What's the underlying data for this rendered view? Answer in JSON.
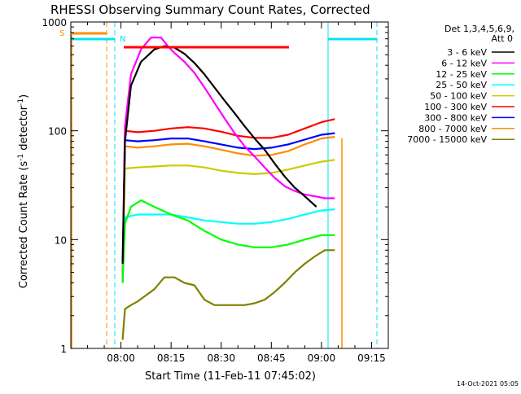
{
  "chart_data": {
    "type": "line",
    "title": "RHESSI Observing Summary Count Rates, Corrected",
    "xlabel": "Start Time (11-Feb-11 07:45:02)",
    "ylabel_main": "Corrected Count Rate (s",
    "ylabel_sup1": "-1",
    "ylabel_mid": " detector",
    "ylabel_sup2": "-1",
    "ylabel_end": ")",
    "y_scale": "log",
    "ylim": [
      1,
      1000
    ],
    "xlim_minutes": [
      0,
      95
    ],
    "x_ticks": [
      {
        "min": 15,
        "label": "08:00"
      },
      {
        "min": 30,
        "label": "08:15"
      },
      {
        "min": 45,
        "label": "08:30"
      },
      {
        "min": 60,
        "label": "08:45"
      },
      {
        "min": 75,
        "label": "09:00"
      },
      {
        "min": 90,
        "label": "09:15"
      }
    ],
    "y_ticks": [
      {
        "value": 1,
        "label": "1"
      },
      {
        "value": 10,
        "label": "10"
      },
      {
        "value": 100,
        "label": "100"
      },
      {
        "value": 1000,
        "label": "1000"
      }
    ],
    "legend_header": [
      "Det 1,3,4,5,6,9,",
      "Att 0"
    ],
    "legend_position": "right",
    "timestamp": "14-Oct-2021 05:05",
    "annotations": [
      {
        "text": "S",
        "color": "#ff8c00"
      },
      {
        "text": "N",
        "color": "#00e5ee"
      }
    ],
    "series": [
      {
        "name": "3 - 6 keV",
        "color": "#000000",
        "x": [
          15.5,
          16.2,
          18,
          21,
          25,
          28,
          31,
          34,
          37,
          40,
          43,
          46,
          49,
          52,
          55,
          58,
          61,
          64,
          67,
          70,
          72,
          73.5
        ],
        "values": [
          6,
          80,
          260,
          430,
          560,
          600,
          580,
          510,
          420,
          330,
          250,
          190,
          145,
          110,
          85,
          67,
          50,
          38,
          30,
          25,
          22,
          20
        ]
      },
      {
        "name": "6 - 12 keV",
        "color": "#ff00ff",
        "x": [
          15.5,
          16.2,
          18,
          21,
          24,
          27,
          29,
          31,
          34,
          37,
          40,
          43,
          46,
          49,
          52,
          55,
          58,
          61,
          64,
          67,
          70,
          73,
          76,
          79
        ],
        "values": [
          6,
          110,
          330,
          560,
          720,
          720,
          600,
          520,
          430,
          340,
          250,
          180,
          130,
          95,
          72,
          58,
          46,
          37,
          31,
          28,
          26,
          25,
          24,
          24
        ]
      },
      {
        "name": "12 - 25 keV",
        "color": "#00ff00",
        "x": [
          15.5,
          16.2,
          18,
          21,
          25,
          30,
          35,
          40,
          45,
          50,
          55,
          60,
          65,
          70,
          75,
          79
        ],
        "values": [
          4,
          14,
          20,
          23,
          20,
          17,
          15,
          12,
          10,
          9,
          8.5,
          8.5,
          9,
          10,
          11,
          11
        ]
      },
      {
        "name": "25 - 50 keV",
        "color": "#00ffff",
        "x": [
          15.5,
          16.2,
          20,
          25,
          30,
          35,
          40,
          45,
          50,
          55,
          60,
          65,
          70,
          75,
          79
        ],
        "values": [
          4,
          16,
          17,
          17,
          17,
          16,
          15,
          14.5,
          14,
          14,
          14.5,
          15.5,
          17,
          18.5,
          19
        ]
      },
      {
        "name": "50 - 100 keV",
        "color": "#cccc00",
        "x": [
          15.5,
          16.2,
          20,
          25,
          30,
          35,
          40,
          45,
          50,
          55,
          60,
          65,
          70,
          75,
          79
        ],
        "values": [
          4,
          45,
          46,
          47,
          48,
          48,
          46,
          43,
          41,
          40,
          41,
          44,
          48,
          52,
          54
        ]
      },
      {
        "name": "100 - 300 keV",
        "color": "#ff0000",
        "x": [
          15.5,
          16.2,
          20,
          25,
          30,
          35,
          40,
          45,
          50,
          55,
          60,
          65,
          70,
          75,
          79
        ],
        "values": [
          4,
          100,
          97,
          100,
          105,
          108,
          105,
          98,
          90,
          86,
          86,
          92,
          105,
          120,
          128
        ]
      },
      {
        "name": "300 - 800 keV",
        "color": "#0000ff",
        "x": [
          15.5,
          16.2,
          20,
          25,
          30,
          35,
          40,
          45,
          50,
          55,
          60,
          65,
          70,
          75,
          79
        ],
        "values": [
          4,
          82,
          80,
          82,
          85,
          85,
          80,
          75,
          70,
          68,
          70,
          75,
          83,
          92,
          95
        ]
      },
      {
        "name": "800 - 7000 keV",
        "color": "#ff8c00",
        "x": [
          15.5,
          16.2,
          20,
          25,
          30,
          35,
          40,
          45,
          50,
          55,
          60,
          65,
          70,
          75,
          79
        ],
        "values": [
          4,
          72,
          70,
          72,
          75,
          76,
          72,
          67,
          62,
          59,
          60,
          65,
          75,
          85,
          88
        ]
      },
      {
        "name": "7000 - 15000 keV",
        "color": "#808000",
        "x": [
          15.5,
          16.2,
          18,
          20,
          22,
          25,
          28,
          31,
          34,
          37,
          40,
          43,
          46,
          49,
          52,
          55,
          58,
          61,
          64,
          67,
          70,
          73,
          76,
          79
        ],
        "values": [
          1.2,
          2.3,
          2.5,
          2.7,
          3,
          3.5,
          4.5,
          4.5,
          4,
          3.8,
          2.8,
          2.5,
          2.5,
          2.5,
          2.5,
          2.6,
          2.8,
          3.3,
          4,
          5,
          6,
          7,
          8,
          8
        ]
      }
    ]
  }
}
